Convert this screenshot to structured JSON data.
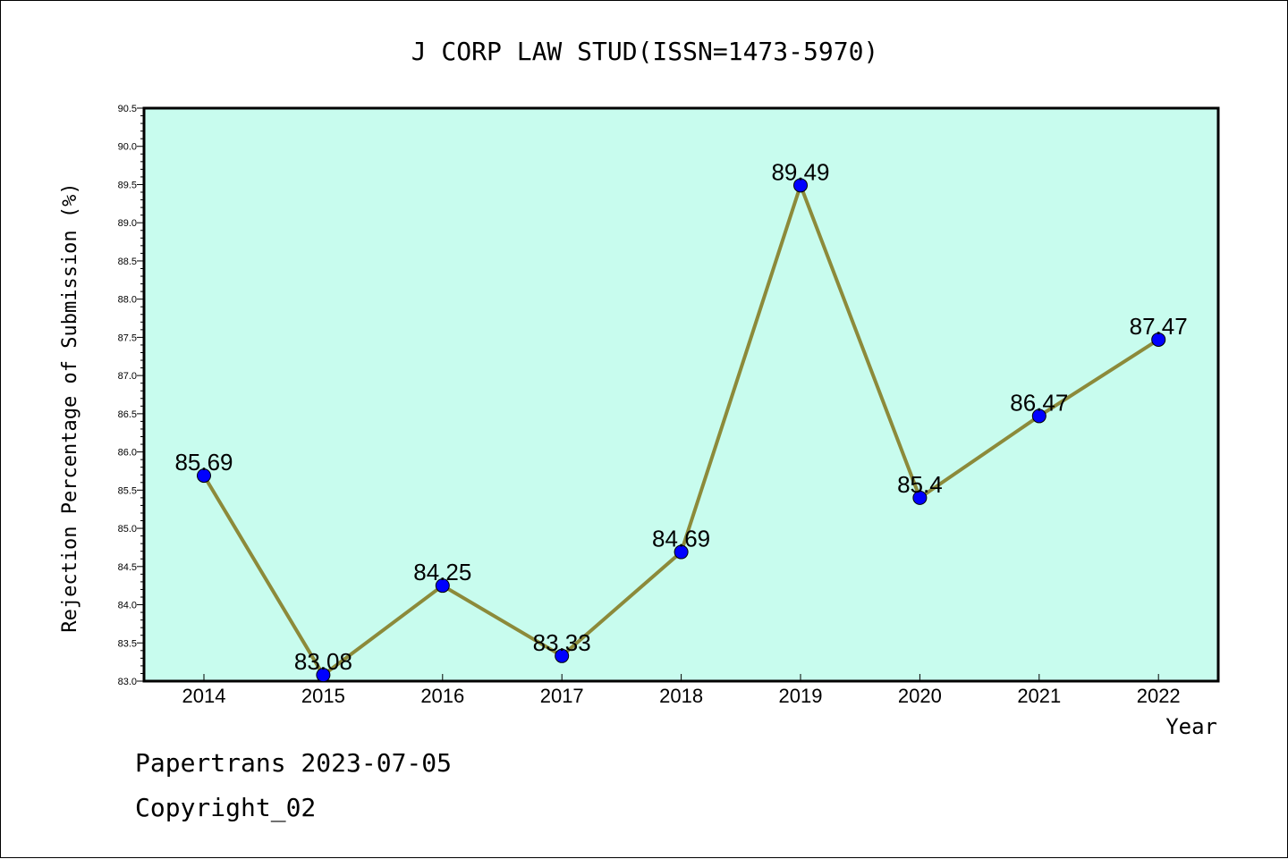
{
  "chart_data": {
    "type": "line",
    "title": "J CORP LAW STUD(ISSN=1473-5970)",
    "xlabel": "Year",
    "ylabel": "Rejection Percentage of Submission (%)",
    "categories": [
      "2014",
      "2015",
      "2016",
      "2017",
      "2018",
      "2019",
      "2020",
      "2021",
      "2022"
    ],
    "values": [
      85.69,
      83.08,
      84.25,
      83.33,
      84.69,
      89.49,
      85.4,
      86.47,
      87.47
    ],
    "data_labels": [
      "85.69",
      "83.08",
      "84.25",
      "83.33",
      "84.69",
      "89.49",
      "85.4",
      "86.47",
      "87.47"
    ],
    "ylim": [
      83.0,
      90.5
    ],
    "yticks": [
      "83.0",
      "83.5",
      "84.0",
      "84.5",
      "85.0",
      "85.5",
      "86.0",
      "86.5",
      "87.0",
      "87.5",
      "88.0",
      "88.5",
      "89.0",
      "89.5",
      "90.0",
      "90.5"
    ],
    "grid": false,
    "colors": {
      "plot_background": "#c8fcee",
      "line": "#8c8a3a",
      "marker": "#0000ff"
    }
  },
  "footer": {
    "line1": "Papertrans 2023-07-05",
    "line2": "Copyright_02"
  }
}
